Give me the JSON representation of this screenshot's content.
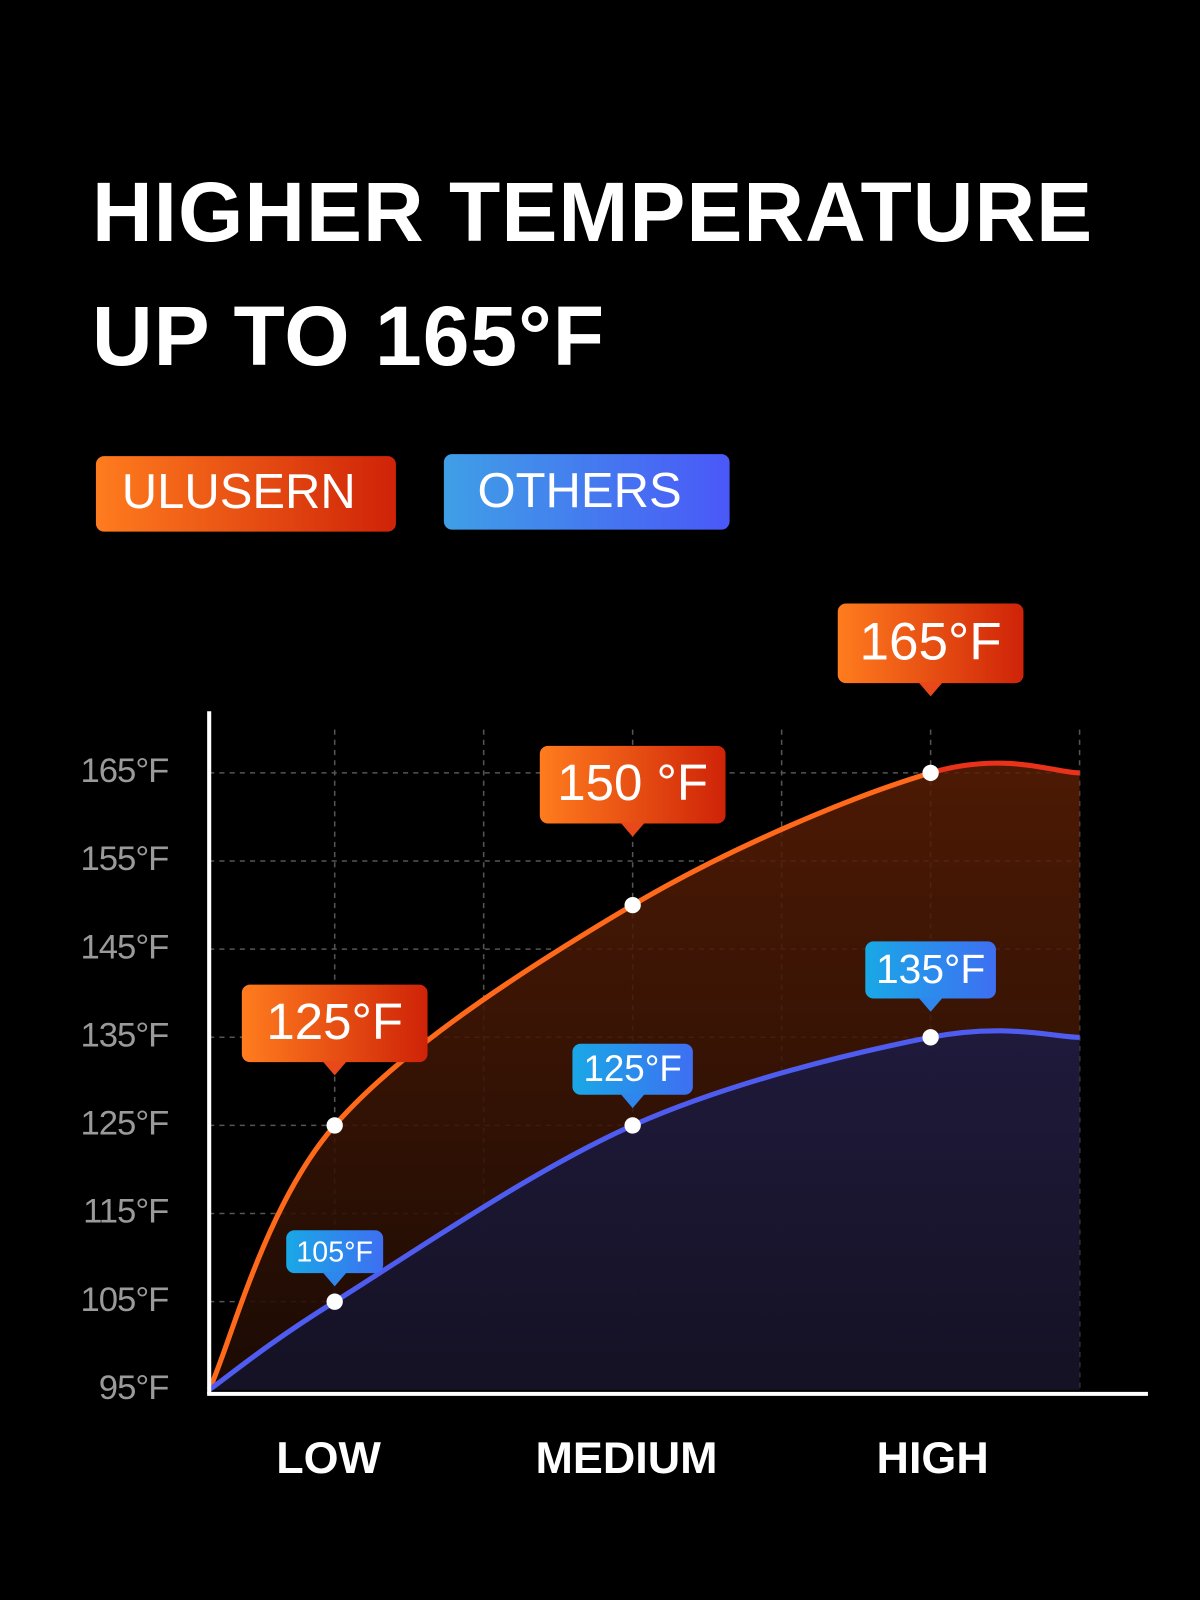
{
  "chart_data": {
    "type": "line",
    "title": "HIGHER TEMPERATURE UP TO 165°F",
    "categories": [
      "LOW",
      "MEDIUM",
      "HIGH"
    ],
    "series": [
      {
        "name": "ULUSERN",
        "color": "#ff6a1a",
        "values": [
          125,
          150,
          165
        ],
        "value_labels": [
          "125°F",
          "150 °F",
          "165°F"
        ]
      },
      {
        "name": "OTHERS",
        "color": "#4f5cf0",
        "values": [
          105,
          125,
          135
        ],
        "value_labels": [
          "105°F",
          "125°F",
          "135°F"
        ]
      }
    ],
    "ylim": [
      95,
      172
    ],
    "yticks": [
      {
        "value": 95,
        "label": "95°F"
      },
      {
        "value": 105,
        "label": "105°F"
      },
      {
        "value": 115,
        "label": "115°F"
      },
      {
        "value": 125,
        "label": "125°F"
      },
      {
        "value": 135,
        "label": "135°F"
      },
      {
        "value": 145,
        "label": "145°F"
      },
      {
        "value": 155,
        "label": "155°F"
      },
      {
        "value": 165,
        "label": "165°F"
      }
    ],
    "grid": true
  }
}
